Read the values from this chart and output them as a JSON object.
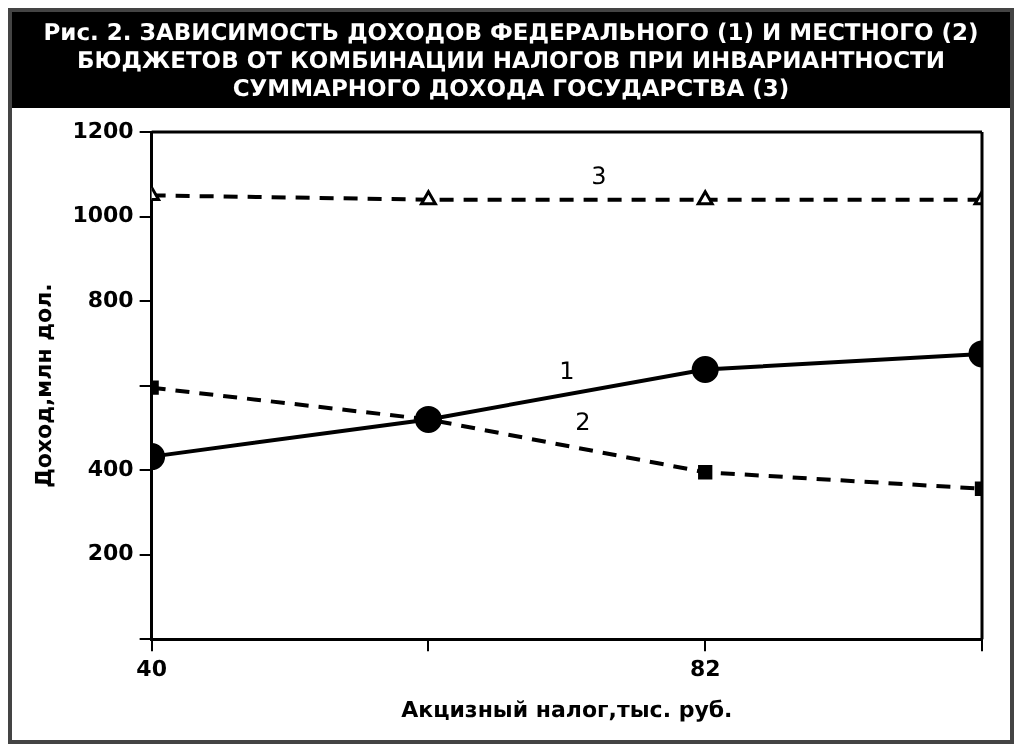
{
  "chart_data": {
    "type": "line",
    "title": "Рис. 2. ЗАВИСИМОСТЬ ДОХОДОВ ФЕДЕРАЛЬНОГО (1) И МЕСТНОГО (2) БЮДЖЕТОВ ОТ КОМБИНАЦИИ НАЛОГОВ ПРИ ИНВАРИАНТНОСТИ СУММАРНОГО ДОХОДА ГОСУДАРСТВА (3)",
    "xlabel": "Акцизный налог,тыс. руб.",
    "ylabel": "Доход,млн дол.",
    "x": [
      40,
      61,
      82,
      103
    ],
    "xlim": [
      40,
      103
    ],
    "xticks": [
      40,
      {
        "value": 61,
        "label": null
      },
      82,
      {
        "value": 103,
        "label": null
      }
    ],
    "ylim": [
      0,
      1200
    ],
    "yticks": [
      {
        "value": 0,
        "label": null
      },
      200,
      400,
      {
        "value": 600,
        "label": null
      },
      800,
      1000,
      1200
    ],
    "grid": false,
    "legend": false,
    "series": [
      {
        "name": "1",
        "color": "#000000",
        "values": [
          432,
          520,
          638,
          675
        ],
        "marker": "circle",
        "line_style": "solid"
      },
      {
        "name": "2",
        "color": "#000000",
        "values": [
          595,
          520,
          395,
          356
        ],
        "marker": "square",
        "line_style": "dashed"
      },
      {
        "name": "3",
        "color": "#000000",
        "values": [
          1050,
          1040,
          1040,
          1040
        ],
        "marker": "triangle",
        "line_style": "dashed"
      }
    ]
  }
}
